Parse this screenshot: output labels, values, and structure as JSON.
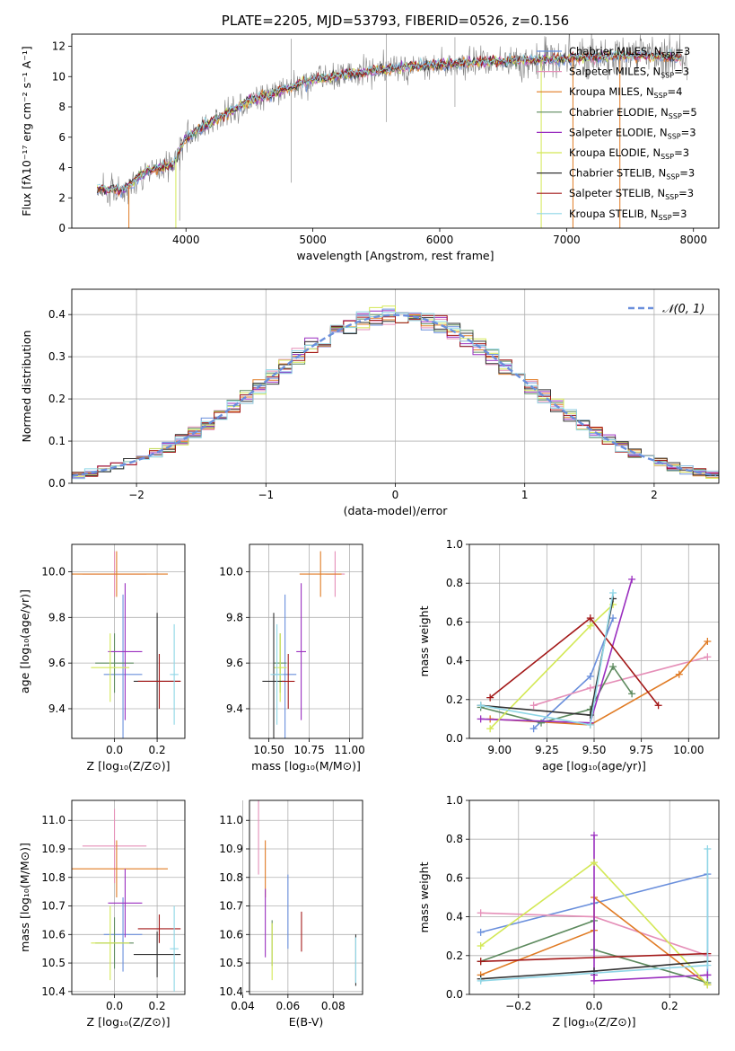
{
  "colors": {
    "chabrier_miles": "#6a8fdc",
    "salpeter_miles": "#e58fb8",
    "kroupa_miles": "#e07b24",
    "chabrier_elodie": "#5d8a5e",
    "salpeter_elodie": "#9a2fbf",
    "kroupa_elodie": "#d3e855",
    "chabrier_stelib": "#333333",
    "salpeter_stelib": "#a31818",
    "kroupa_stelib": "#8fd6e6",
    "data": "#808080",
    "grid": "#b0b0b0"
  },
  "chart_data": [
    {
      "id": "spectrum",
      "type": "line",
      "title": "PLATE=2205, MJD=53793, FIBERID=0526, z=0.156",
      "xlabel": "wavelength [Angstrom, rest frame]",
      "ylabel": "Flux [fλ10⁻¹⁷ erg cm⁻² s⁻¹ A⁻¹]",
      "xlim": [
        3100,
        8200
      ],
      "ylim": [
        0,
        12.8
      ],
      "xticks": [
        4000,
        5000,
        6000,
        7000,
        8000
      ],
      "yticks": [
        0,
        2,
        4,
        6,
        8,
        10,
        12
      ],
      "grid": false,
      "legend_position": "top-right",
      "legend": [
        {
          "label": "Chabrier MILES, N",
          "sub": "SSP",
          "tail": "=3",
          "color_key": "chabrier_miles"
        },
        {
          "label": "Salpeter MILES, N",
          "sub": "SSP",
          "tail": "=3",
          "color_key": "salpeter_miles"
        },
        {
          "label": "Kroupa MILES, N",
          "sub": "SSP",
          "tail": "=4",
          "color_key": "kroupa_miles"
        },
        {
          "label": "Chabrier ELODIE, N",
          "sub": "SSP",
          "tail": "=5",
          "color_key": "chabrier_elodie"
        },
        {
          "label": "Salpeter ELODIE, N",
          "sub": "SSP",
          "tail": "=3",
          "color_key": "salpeter_elodie"
        },
        {
          "label": "Kroupa ELODIE, N",
          "sub": "SSP",
          "tail": "=3",
          "color_key": "kroupa_elodie"
        },
        {
          "label": "Chabrier STELIB, N",
          "sub": "SSP",
          "tail": "=3",
          "color_key": "chabrier_stelib"
        },
        {
          "label": "Salpeter STELIB, N",
          "sub": "SSP",
          "tail": "=3",
          "color_key": "salpeter_stelib"
        },
        {
          "label": "Kroupa STELIB, N",
          "sub": "SSP",
          "tail": "=3",
          "color_key": "kroupa_stelib"
        }
      ],
      "continuum": {
        "x": [
          3300,
          3500,
          3700,
          3900,
          4000,
          4200,
          4500,
          4800,
          5000,
          5300,
          5600,
          6000,
          6400,
          6800,
          7200,
          7600,
          7900
        ],
        "y": [
          2.6,
          2.5,
          3.8,
          4.2,
          6.0,
          7.0,
          8.4,
          9.2,
          9.8,
          10.2,
          10.5,
          10.8,
          11.0,
          11.1,
          11.3,
          11.4,
          11.2
        ]
      }
    },
    {
      "id": "residuals",
      "type": "bar",
      "xlabel": "(data-model)/error",
      "ylabel": "Normed distribution",
      "xlim": [
        -2.5,
        2.5
      ],
      "ylim": [
        0,
        0.46
      ],
      "xticks": [
        -2,
        -1,
        0,
        1,
        2
      ],
      "yticks": [
        0.0,
        0.1,
        0.2,
        0.3,
        0.4
      ],
      "grid": true,
      "legend_position": "top-right",
      "reference_curve": {
        "label": "𝒩(0, 1)",
        "mean": 0,
        "sigma": 1
      }
    },
    {
      "id": "age_vs_Z",
      "type": "scatter",
      "xlabel": "Z [log₁₀(Z/Z⊙)]",
      "ylabel": "age  [log₁₀(age/yr)]",
      "xlim": [
        -0.2,
        0.33
      ],
      "ylim": [
        9.27,
        10.12
      ],
      "xticks": [
        0.0,
        0.2
      ],
      "yticks": [
        9.4,
        9.6,
        9.8,
        10.0
      ],
      "grid": true,
      "series": [
        {
          "color_key": "chabrier_miles",
          "x": 0.04,
          "xerr": 0.09,
          "y": 9.55,
          "yerr": 0.35
        },
        {
          "color_key": "salpeter_miles",
          "x": 0.0,
          "xerr": 0.15,
          "y": 9.99,
          "yerr": 0.1
        },
        {
          "color_key": "kroupa_miles",
          "x": 0.01,
          "xerr": 0.24,
          "y": 9.99,
          "yerr": 0.1
        },
        {
          "color_key": "chabrier_elodie",
          "x": 0.0,
          "xerr": 0.09,
          "y": 9.6,
          "yerr": 0.13
        },
        {
          "color_key": "salpeter_elodie",
          "x": 0.05,
          "xerr": 0.08,
          "y": 9.65,
          "yerr": 0.3
        },
        {
          "color_key": "kroupa_elodie",
          "x": -0.02,
          "xerr": 0.09,
          "y": 9.58,
          "yerr": 0.15
        },
        {
          "color_key": "chabrier_stelib",
          "x": 0.2,
          "xerr": 0.11,
          "y": 9.52,
          "yerr": 0.3
        },
        {
          "color_key": "salpeter_stelib",
          "x": 0.21,
          "xerr": 0.1,
          "y": 9.52,
          "yerr": 0.12
        },
        {
          "color_key": "kroupa_stelib",
          "x": 0.28,
          "xerr": 0.02,
          "y": 9.55,
          "yerr": 0.22
        }
      ]
    },
    {
      "id": "age_vs_mass",
      "type": "scatter",
      "xlabel": "mass [log₁₀(M/M⊙)]",
      "ylabel": "",
      "xlim": [
        10.38,
        11.08
      ],
      "ylim": [
        9.27,
        10.12
      ],
      "xticks": [
        10.5,
        10.75,
        11.0
      ],
      "yticks": [
        9.4,
        9.6,
        9.8,
        10.0
      ],
      "grid": true,
      "series": [
        {
          "color_key": "chabrier_miles",
          "x": 10.6,
          "xerr": 0.07,
          "y": 9.55,
          "yerr": 0.35
        },
        {
          "color_key": "salpeter_miles",
          "x": 10.91,
          "xerr": 0.06,
          "y": 9.99,
          "yerr": 0.1
        },
        {
          "color_key": "kroupa_miles",
          "x": 10.82,
          "xerr": 0.13,
          "y": 9.99,
          "yerr": 0.1
        },
        {
          "color_key": "chabrier_elodie",
          "x": 10.57,
          "xerr": 0.04,
          "y": 9.6,
          "yerr": 0.13
        },
        {
          "color_key": "salpeter_elodie",
          "x": 10.7,
          "xerr": 0.03,
          "y": 9.65,
          "yerr": 0.3
        },
        {
          "color_key": "kroupa_elodie",
          "x": 10.57,
          "xerr": 0.04,
          "y": 9.58,
          "yerr": 0.15
        },
        {
          "color_key": "chabrier_stelib",
          "x": 10.53,
          "xerr": 0.07,
          "y": 9.52,
          "yerr": 0.3
        },
        {
          "color_key": "salpeter_stelib",
          "x": 10.62,
          "xerr": 0.04,
          "y": 9.52,
          "yerr": 0.12
        },
        {
          "color_key": "kroupa_stelib",
          "x": 10.55,
          "xerr": 0.04,
          "y": 9.55,
          "yerr": 0.22
        }
      ]
    },
    {
      "id": "weight_vs_age",
      "type": "line",
      "xlabel": "age  [log₁₀(age/yr)]",
      "ylabel": "mass weight",
      "xlim": [
        8.84,
        10.16
      ],
      "ylim": [
        0,
        1.0
      ],
      "xticks": [
        9.0,
        9.25,
        9.5,
        9.75,
        10.0
      ],
      "yticks": [
        0.0,
        0.2,
        0.4,
        0.6,
        0.8,
        1.0
      ],
      "grid": true,
      "series": [
        {
          "color_key": "chabrier_miles",
          "x": [
            9.18,
            9.48,
            9.6
          ],
          "y": [
            0.05,
            0.32,
            0.62
          ]
        },
        {
          "color_key": "salpeter_miles",
          "x": [
            9.18,
            9.48,
            10.1
          ],
          "y": [
            0.17,
            0.26,
            0.42
          ]
        },
        {
          "color_key": "kroupa_miles",
          "x": [
            8.95,
            9.48,
            9.95,
            10.1
          ],
          "y": [
            0.1,
            0.07,
            0.33,
            0.5
          ]
        },
        {
          "color_key": "chabrier_elodie",
          "x": [
            8.9,
            9.22,
            9.48,
            9.6,
            9.7
          ],
          "y": [
            0.16,
            0.08,
            0.15,
            0.37,
            0.23
          ]
        },
        {
          "color_key": "salpeter_elodie",
          "x": [
            8.9,
            9.48,
            9.7
          ],
          "y": [
            0.1,
            0.08,
            0.82
          ]
        },
        {
          "color_key": "kroupa_elodie",
          "x": [
            8.95,
            9.48,
            9.6
          ],
          "y": [
            0.05,
            0.58,
            0.69
          ]
        },
        {
          "color_key": "chabrier_stelib",
          "x": [
            8.9,
            9.48,
            9.6
          ],
          "y": [
            0.17,
            0.12,
            0.72
          ]
        },
        {
          "color_key": "salpeter_stelib",
          "x": [
            8.95,
            9.48,
            9.84
          ],
          "y": [
            0.21,
            0.62,
            0.17
          ]
        },
        {
          "color_key": "kroupa_stelib",
          "x": [
            8.9,
            9.48,
            9.6
          ],
          "y": [
            0.17,
            0.07,
            0.75
          ]
        }
      ]
    },
    {
      "id": "mass_vs_Z",
      "type": "scatter",
      "xlabel": "Z [log₁₀(Z/Z⊙)]",
      "ylabel": "mass [log₁₀(M/M⊙)]",
      "xlim": [
        -0.2,
        0.33
      ],
      "ylim": [
        10.39,
        11.07
      ],
      "xticks": [
        0.0,
        0.2
      ],
      "yticks": [
        10.4,
        10.5,
        10.6,
        10.7,
        10.8,
        10.9,
        11.0
      ],
      "grid": true,
      "series": [
        {
          "color_key": "chabrier_miles",
          "x": 0.04,
          "xerr": 0.09,
          "y": 10.6,
          "yerr": 0.13
        },
        {
          "color_key": "salpeter_miles",
          "x": 0.0,
          "xerr": 0.15,
          "y": 10.91,
          "yerr": 0.13
        },
        {
          "color_key": "kroupa_miles",
          "x": 0.01,
          "xerr": 0.24,
          "y": 10.83,
          "yerr": 0.1
        },
        {
          "color_key": "chabrier_elodie",
          "x": 0.0,
          "xerr": 0.09,
          "y": 10.57,
          "yerr": 0.09
        },
        {
          "color_key": "salpeter_elodie",
          "x": 0.05,
          "xerr": 0.08,
          "y": 10.71,
          "yerr": 0.12
        },
        {
          "color_key": "kroupa_elodie",
          "x": -0.02,
          "xerr": 0.09,
          "y": 10.57,
          "yerr": 0.13
        },
        {
          "color_key": "chabrier_stelib",
          "x": 0.2,
          "xerr": 0.11,
          "y": 10.53,
          "yerr": 0.08
        },
        {
          "color_key": "salpeter_stelib",
          "x": 0.21,
          "xerr": 0.1,
          "y": 10.62,
          "yerr": 0.05
        },
        {
          "color_key": "kroupa_stelib",
          "x": 0.28,
          "xerr": 0.02,
          "y": 10.55,
          "yerr": 0.15
        }
      ]
    },
    {
      "id": "mass_vs_ebv",
      "type": "scatter",
      "xlabel": "E(B-V)",
      "ylabel": "",
      "xlim": [
        0.043,
        0.093
      ],
      "ylim": [
        10.39,
        11.07
      ],
      "xticks": [
        0.04,
        0.06,
        0.08
      ],
      "yticks": [
        10.4,
        10.5,
        10.6,
        10.7,
        10.8,
        10.9,
        11.0
      ],
      "grid": true,
      "series": [
        {
          "color_key": "chabrier_miles",
          "x": 0.06,
          "y": 10.68,
          "yerr": 0.13
        },
        {
          "color_key": "salpeter_miles",
          "x": 0.047,
          "y": 10.97,
          "yerr": 0.16
        },
        {
          "color_key": "kroupa_miles",
          "x": 0.05,
          "y": 10.83,
          "yerr": 0.1
        },
        {
          "color_key": "chabrier_elodie",
          "x": 0.053,
          "y": 10.57,
          "yerr": 0.08
        },
        {
          "color_key": "salpeter_elodie",
          "x": 0.05,
          "y": 10.64,
          "yerr": 0.12
        },
        {
          "color_key": "kroupa_elodie",
          "x": 0.053,
          "y": 10.54,
          "yerr": 0.1
        },
        {
          "color_key": "chabrier_stelib",
          "x": 0.09,
          "y": 10.51,
          "yerr": 0.09
        },
        {
          "color_key": "salpeter_stelib",
          "x": 0.066,
          "y": 10.61,
          "yerr": 0.07
        },
        {
          "color_key": "kroupa_stelib",
          "x": 0.09,
          "y": 10.51,
          "yerr": 0.08
        }
      ]
    },
    {
      "id": "weight_vs_Z",
      "type": "line",
      "xlabel": "Z [log₁₀(Z/Z⊙)]",
      "ylabel": "mass weight",
      "xlim": [
        -0.33,
        0.33
      ],
      "ylim": [
        0,
        1.0
      ],
      "xticks": [
        -0.2,
        0.0,
        0.2
      ],
      "yticks": [
        0.0,
        0.2,
        0.4,
        0.6,
        0.8,
        1.0
      ],
      "grid": true,
      "series": [
        {
          "color_key": "chabrier_miles",
          "x": [
            -0.3,
            0.0,
            0.3,
            0.3
          ],
          "y": [
            0.32,
            0.47,
            0.62,
            0.05
          ]
        },
        {
          "color_key": "salpeter_miles",
          "x": [
            -0.3,
            0.0,
            0.3
          ],
          "y": [
            0.42,
            0.4,
            0.2
          ]
        },
        {
          "color_key": "kroupa_miles",
          "x": [
            -0.3,
            0.0,
            0.0,
            0.3
          ],
          "y": [
            0.1,
            0.33,
            0.5,
            0.05
          ]
        },
        {
          "color_key": "chabrier_elodie",
          "x": [
            -0.3,
            0.0,
            0.0,
            0.3
          ],
          "y": [
            0.17,
            0.38,
            0.23,
            0.06
          ]
        },
        {
          "color_key": "salpeter_elodie",
          "x": [
            0.0,
            0.0,
            0.0,
            0.3,
            0.3
          ],
          "y": [
            0.82,
            0.1,
            0.07,
            0.1,
            0.1
          ]
        },
        {
          "color_key": "kroupa_elodie",
          "x": [
            -0.3,
            0.0,
            0.3
          ],
          "y": [
            0.25,
            0.68,
            0.05
          ]
        },
        {
          "color_key": "chabrier_stelib",
          "x": [
            -0.3,
            0.0,
            0.3
          ],
          "y": [
            0.08,
            0.12,
            0.17
          ]
        },
        {
          "color_key": "salpeter_stelib",
          "x": [
            -0.3,
            0.3
          ],
          "y": [
            0.17,
            0.21
          ]
        },
        {
          "color_key": "kroupa_stelib",
          "x": [
            -0.3,
            0.3,
            0.3
          ],
          "y": [
            0.07,
            0.15,
            0.75
          ]
        }
      ]
    }
  ]
}
